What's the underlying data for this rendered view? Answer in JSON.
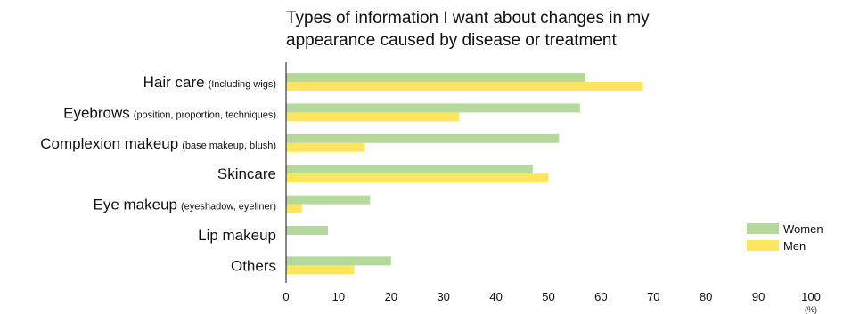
{
  "chart_data": {
    "type": "bar",
    "orientation": "horizontal",
    "title_lines": [
      "Types of information I want about changes in my",
      "appearance caused by disease or treatment"
    ],
    "categories": [
      {
        "main": "Hair care",
        "sub": "(Including wigs)"
      },
      {
        "main": "Eyebrows",
        "sub": "(position, proportion, techniques)"
      },
      {
        "main": "Complexion makeup",
        "sub": "(base makeup, blush)"
      },
      {
        "main": "Skincare",
        "sub": ""
      },
      {
        "main": "Eye makeup",
        "sub": "(eyeshadow, eyeliner)"
      },
      {
        "main": "Lip makeup",
        "sub": ""
      },
      {
        "main": "Others",
        "sub": ""
      }
    ],
    "series": [
      {
        "name": "Women",
        "color": "#b5d99c",
        "values": [
          57,
          56,
          52,
          47,
          16,
          8,
          20
        ]
      },
      {
        "name": "Men",
        "color": "#ffe45e",
        "values": [
          68,
          33,
          15,
          50,
          3,
          0,
          13
        ]
      }
    ],
    "xlim": [
      0,
      100
    ],
    "xticks": [
      0,
      10,
      20,
      30,
      40,
      50,
      60,
      70,
      80,
      90,
      100
    ],
    "xunit": "(%)",
    "grid": false,
    "legend_position": "right"
  }
}
